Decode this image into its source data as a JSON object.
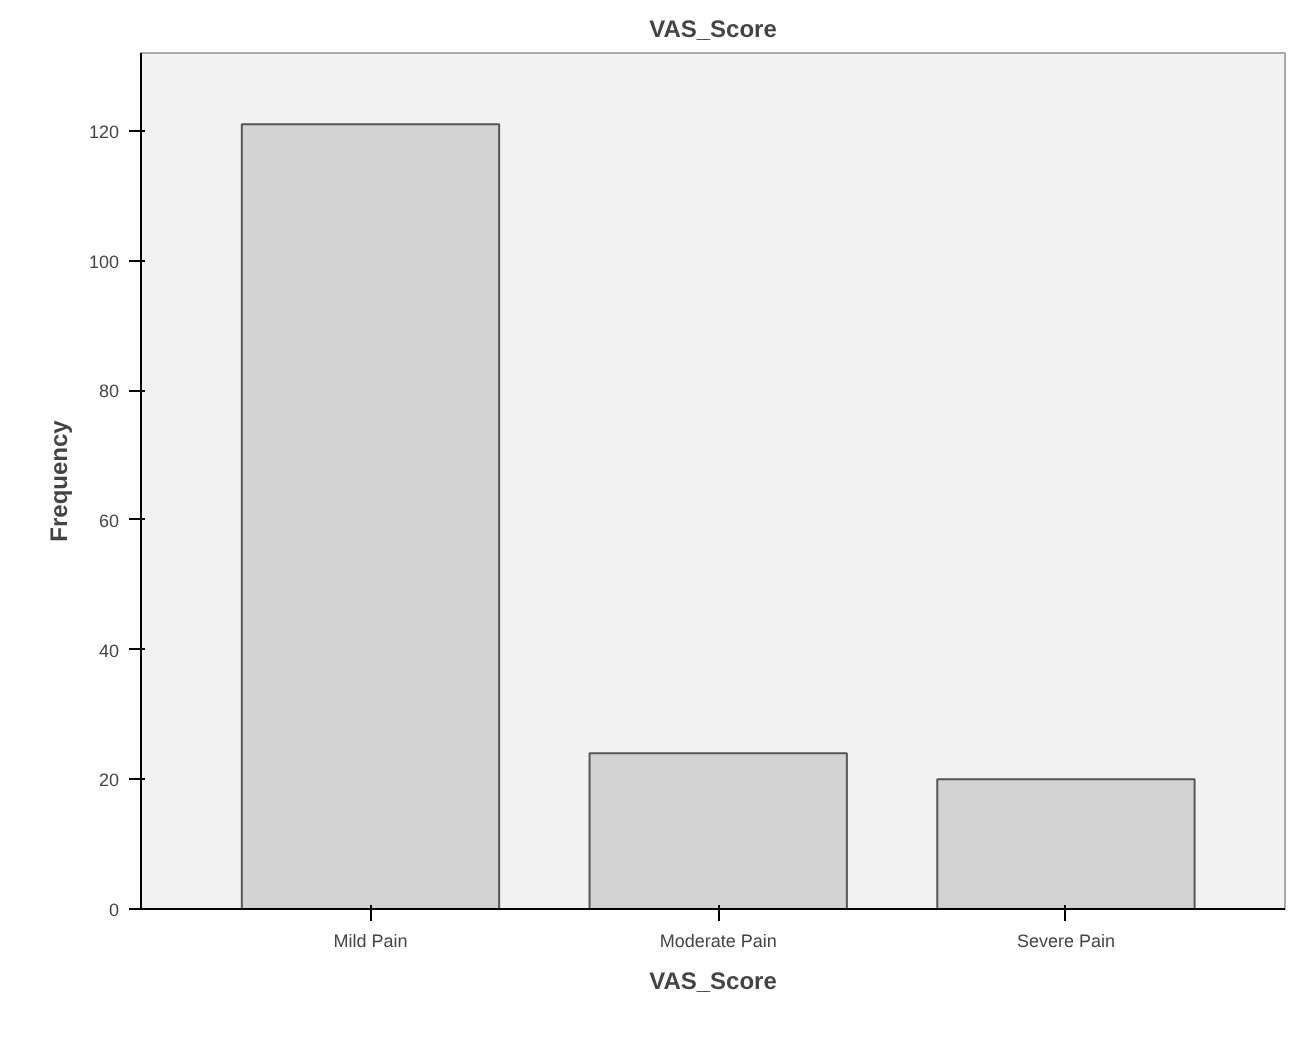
{
  "chart_data": {
    "type": "bar",
    "title": "VAS_Score",
    "xlabel": "VAS_Score",
    "ylabel": "Frequency",
    "categories": [
      "Mild Pain",
      "Moderate Pain",
      "Severe Pain"
    ],
    "values": [
      121,
      24,
      20
    ],
    "color": "#d3d3d3",
    "ylim": [
      0,
      132
    ],
    "yticks": [
      0,
      20,
      40,
      60,
      80,
      100,
      120
    ],
    "grid": false
  }
}
